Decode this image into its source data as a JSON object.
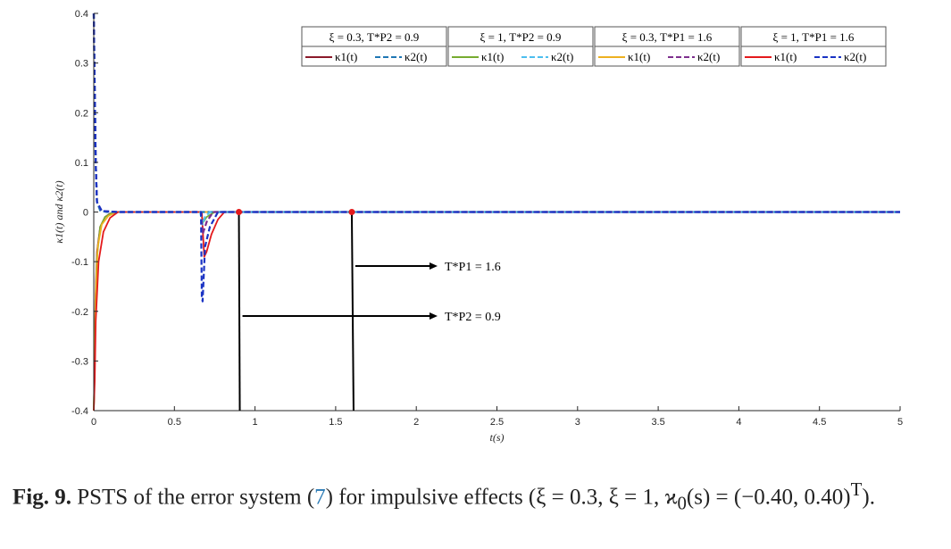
{
  "chart_data": {
    "type": "line",
    "title": "",
    "xlabel": "t(s)",
    "ylabel": "κ1(t) and κ2(t)",
    "xlim": [
      0,
      5
    ],
    "ylim": [
      -0.4,
      0.4
    ],
    "xticks": [
      "0",
      "0.5",
      "1",
      "1.5",
      "2",
      "2.5",
      "3",
      "3.5",
      "4",
      "4.5",
      "5"
    ],
    "yticks": [
      "0.4",
      "0.3",
      "0.2",
      "0.1",
      "0",
      "-0.1",
      "-0.2",
      "-0.3",
      "-0.4"
    ],
    "grid": false,
    "legend_position": "top-right",
    "legend_groups": [
      "ξ = 0.3, T*P2 = 0.9",
      "ξ = 1, T*P2 = 0.9",
      "ξ = 0.3, T*P1 = 1.6",
      "ξ = 1, T*P1 = 1.6"
    ],
    "series": [
      {
        "name": "κ1(t)",
        "group": 0,
        "color": "#8b1a2a",
        "dash": "solid",
        "x": [
          0,
          0.005,
          0.01,
          0.02,
          0.04,
          0.07,
          0.1,
          0.15,
          5
        ],
        "y": [
          -0.4,
          -0.32,
          -0.18,
          -0.08,
          -0.03,
          -0.01,
          -0.003,
          0,
          0
        ]
      },
      {
        "name": "κ2(t)",
        "group": 0,
        "color": "#1f77b4",
        "dash": "dashed",
        "x": [
          0,
          0.004,
          0.012,
          0.02,
          0.04,
          0.08,
          0.15,
          5
        ],
        "y": [
          0.4,
          0.3,
          0.1,
          0.02,
          0.003,
          0,
          0,
          0
        ]
      },
      {
        "name": "κ1(t)",
        "group": 1,
        "color": "#77ac30",
        "dash": "solid",
        "x": [
          0,
          0.005,
          0.01,
          0.02,
          0.04,
          0.07,
          0.12,
          0.66,
          0.68,
          0.7,
          0.75,
          5
        ],
        "y": [
          -0.4,
          -0.33,
          -0.2,
          -0.09,
          -0.03,
          -0.01,
          0,
          0,
          -0.02,
          -0.01,
          0,
          0
        ]
      },
      {
        "name": "κ2(t)",
        "group": 1,
        "color": "#4dbeee",
        "dash": "dashed",
        "x": [
          0,
          0.004,
          0.012,
          0.02,
          0.05,
          0.15,
          0.66,
          0.675,
          0.69,
          0.72,
          5
        ],
        "y": [
          0.4,
          0.28,
          0.09,
          0.02,
          0.001,
          0,
          0,
          -0.025,
          -0.01,
          0,
          0
        ]
      },
      {
        "name": "κ1(t)",
        "group": 2,
        "color": "#edb120",
        "dash": "solid",
        "x": [
          0,
          0.006,
          0.012,
          0.025,
          0.05,
          0.09,
          0.14,
          5
        ],
        "y": [
          -0.4,
          -0.3,
          -0.17,
          -0.07,
          -0.025,
          -0.008,
          0,
          0
        ]
      },
      {
        "name": "κ2(t)",
        "group": 2,
        "color": "#7e2f8e",
        "dash": "dashed",
        "x": [
          0,
          0.004,
          0.012,
          0.02,
          0.05,
          0.15,
          0.665,
          0.675,
          0.7,
          0.74,
          5
        ],
        "y": [
          0.4,
          0.29,
          0.1,
          0.02,
          0.002,
          0,
          0,
          -0.045,
          -0.02,
          0,
          0
        ]
      },
      {
        "name": "κ1(t)",
        "group": 3,
        "color": "#e41a1c",
        "dash": "solid",
        "x": [
          0,
          0.006,
          0.012,
          0.03,
          0.06,
          0.1,
          0.15,
          0.67,
          0.685,
          0.7,
          0.73,
          0.77,
          0.81,
          5
        ],
        "y": [
          -0.4,
          -0.34,
          -0.22,
          -0.1,
          -0.04,
          -0.012,
          0,
          0,
          -0.09,
          -0.08,
          -0.045,
          -0.015,
          0,
          0
        ]
      },
      {
        "name": "κ2(t)",
        "group": 3,
        "color": "#1a33c4",
        "dash": "dashed",
        "x": [
          0,
          0.004,
          0.012,
          0.02,
          0.05,
          0.15,
          0.665,
          0.67,
          0.675,
          0.69,
          0.72,
          0.77,
          5
        ],
        "y": [
          0.4,
          0.3,
          0.1,
          0.02,
          0.002,
          0,
          0,
          -0.17,
          -0.18,
          -0.07,
          -0.03,
          0,
          0
        ]
      }
    ],
    "annotations": [
      {
        "text": "T*P1 = 1.6",
        "x": 1.6
      },
      {
        "text": "T*P2 = 0.9",
        "x": 0.9
      }
    ]
  },
  "caption": {
    "fig_label": "Fig. 9.",
    "text_before_ref": "PSTS of the error system (",
    "ref": "7",
    "text_after_ref": ") for impulsive effects (ξ = 0.3, ξ = 1, ϰ",
    "subscript": "0",
    "text_tail": "(s) = (−0.40, 0.40)",
    "superscript": "T",
    "text_end": ")."
  }
}
